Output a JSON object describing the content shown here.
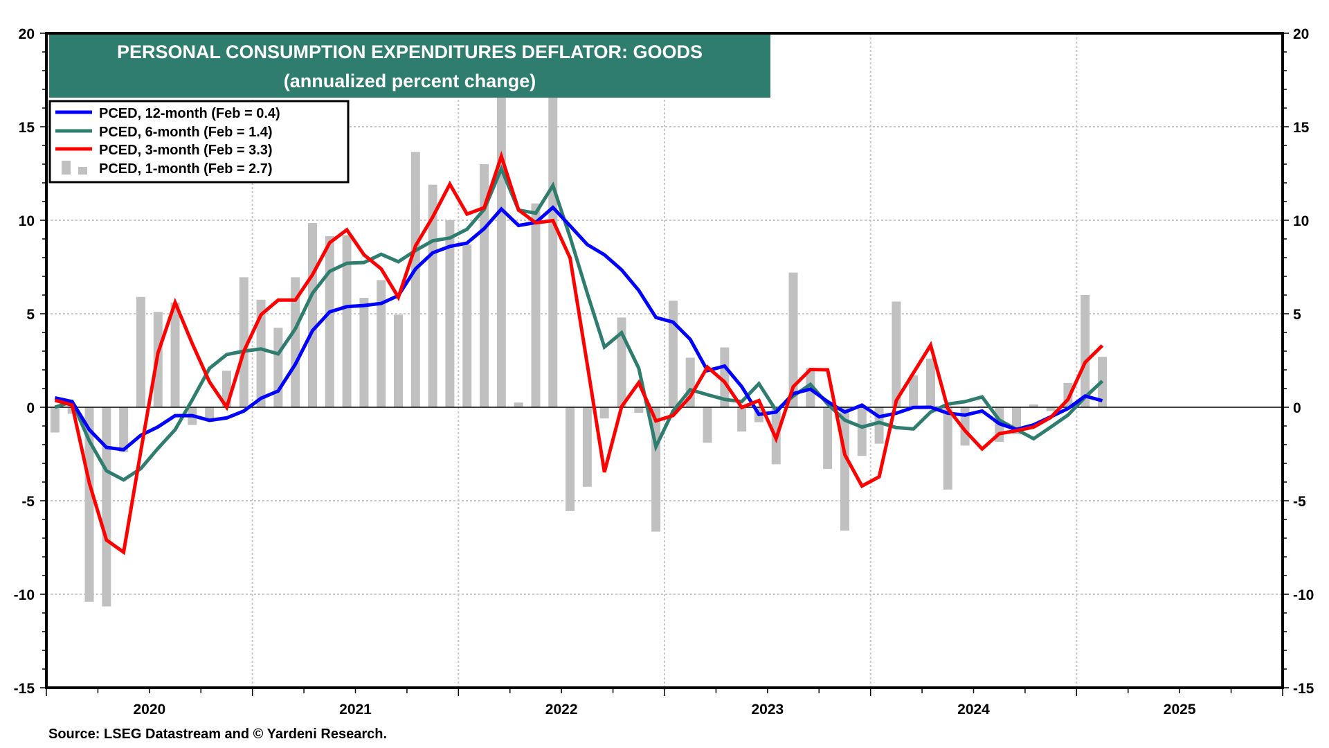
{
  "chart_data": {
    "type": "bar+line",
    "title": "PERSONAL CONSUMPTION EXPENDITURES DEFLATOR: GOODS",
    "subtitle": "(annualized percent change)",
    "xlabel": "",
    "ylabel": "",
    "ylim": [
      -15,
      20
    ],
    "yticks": [
      20,
      15,
      10,
      5,
      0,
      -5,
      -10,
      -15
    ],
    "y_minor_step": 1,
    "x_range": [
      "2020-01",
      "2025-12"
    ],
    "x_tick_labels": [
      "2020",
      "2021",
      "2022",
      "2023",
      "2024",
      "2025"
    ],
    "x_ticks": "quarterly",
    "grid": {
      "horizontal": "dotted",
      "vertical": "dashed at year boundaries"
    },
    "legend_position": "top-left",
    "source": "Source: LSEG Datastream and © Yardeni Research.",
    "months": [
      "2020-01",
      "2020-02",
      "2020-03",
      "2020-04",
      "2020-05",
      "2020-06",
      "2020-07",
      "2020-08",
      "2020-09",
      "2020-10",
      "2020-11",
      "2020-12",
      "2021-01",
      "2021-02",
      "2021-03",
      "2021-04",
      "2021-05",
      "2021-06",
      "2021-07",
      "2021-08",
      "2021-09",
      "2021-10",
      "2021-11",
      "2021-12",
      "2022-01",
      "2022-02",
      "2022-03",
      "2022-04",
      "2022-05",
      "2022-06",
      "2022-07",
      "2022-08",
      "2022-09",
      "2022-10",
      "2022-11",
      "2022-12",
      "2023-01",
      "2023-02",
      "2023-03",
      "2023-04",
      "2023-05",
      "2023-06",
      "2023-07",
      "2023-08",
      "2023-09",
      "2023-10",
      "2023-11",
      "2023-12",
      "2024-01",
      "2024-02",
      "2024-03",
      "2024-04",
      "2024-05",
      "2024-06",
      "2024-07",
      "2024-08",
      "2024-09",
      "2024-10",
      "2024-11",
      "2024-12",
      "2025-01",
      "2025-02"
    ],
    "series": [
      {
        "name": "PCED, 1-month",
        "legend": "PCED, 1-month (Feb = 2.7)",
        "type": "bar",
        "color": "#C0C0C0",
        "values": [
          -1.35,
          -0.35,
          -10.4,
          -10.65,
          -2.4,
          5.9,
          5.1,
          5.6,
          -0.95,
          -0.7,
          1.95,
          6.95,
          5.75,
          4.25,
          6.95,
          9.85,
          9.15,
          9.2,
          5.85,
          6.8,
          4.95,
          13.65,
          11.9,
          10.0,
          8.7,
          13.0,
          19.0,
          0.25,
          10.9,
          18.0,
          -5.55,
          -4.25,
          -0.6,
          4.8,
          -0.3,
          -6.65,
          5.7,
          2.65,
          -1.9,
          3.2,
          -1.3,
          -0.8,
          -3.05,
          7.2,
          2.1,
          -3.3,
          -6.6,
          -2.6,
          -1.95,
          5.65,
          1.7,
          2.6,
          -4.4,
          -2.05,
          0.05,
          -1.85,
          -1.45,
          0.15,
          -0.2,
          1.3,
          6.0,
          2.7
        ]
      },
      {
        "name": "PCED, 12-month",
        "legend": "PCED, 12-month (Feb = 0.4)",
        "type": "line",
        "color": "#0000FF",
        "values": [
          0.5,
          0.3,
          -1.2,
          -2.15,
          -2.27,
          -1.5,
          -1.05,
          -0.45,
          -0.45,
          -0.7,
          -0.57,
          -0.2,
          0.48,
          0.87,
          2.3,
          4.1,
          5.1,
          5.38,
          5.44,
          5.55,
          5.97,
          7.4,
          8.26,
          8.6,
          8.78,
          9.55,
          10.6,
          9.72,
          9.88,
          10.68,
          9.7,
          8.7,
          8.15,
          7.35,
          6.25,
          4.8,
          4.55,
          3.63,
          1.96,
          2.2,
          1.1,
          -0.38,
          -0.26,
          0.73,
          0.97,
          0.3,
          -0.26,
          0.11,
          -0.51,
          -0.32,
          -0.01,
          0.0,
          -0.32,
          -0.42,
          -0.2,
          -0.88,
          -1.19,
          -0.94,
          -0.51,
          -0.07,
          0.6,
          0.35
        ]
      },
      {
        "name": "PCED, 6-month",
        "legend": "PCED, 6-month (Feb = 1.4)",
        "type": "line",
        "color": "#2E7D6F",
        "values": [
          0.0,
          0.3,
          -1.8,
          -3.4,
          -3.88,
          -3.28,
          -2.2,
          -1.2,
          0.4,
          2.08,
          2.82,
          3.0,
          3.12,
          2.85,
          4.2,
          6.1,
          7.27,
          7.7,
          7.74,
          8.18,
          7.78,
          8.38,
          8.9,
          9.05,
          9.52,
          10.58,
          12.75,
          10.54,
          10.38,
          11.86,
          9.1,
          6.1,
          3.22,
          3.98,
          2.09,
          -2.11,
          -0.2,
          0.94,
          0.67,
          0.42,
          0.3,
          1.26,
          -0.17,
          0.6,
          1.22,
          0.17,
          -0.69,
          -1.06,
          -0.81,
          -1.09,
          -1.16,
          -0.26,
          0.17,
          0.3,
          0.55,
          -0.69,
          -1.19,
          -1.68,
          -1.06,
          -0.42,
          0.54,
          1.4
        ]
      },
      {
        "name": "PCED, 3-month",
        "legend": "PCED, 3-month (Feb = 3.3)",
        "type": "line",
        "color": "#FF0000",
        "values": [
          0.37,
          0.12,
          -4.05,
          -7.1,
          -7.75,
          -2.35,
          2.9,
          5.6,
          3.4,
          1.35,
          0.0,
          3.0,
          4.95,
          5.73,
          5.73,
          7.09,
          8.8,
          9.49,
          8.15,
          7.4,
          5.88,
          8.63,
          10.17,
          11.93,
          10.33,
          10.67,
          13.42,
          10.55,
          9.86,
          9.98,
          7.98,
          2.3,
          -3.47,
          0.03,
          1.31,
          -0.73,
          -0.44,
          0.57,
          2.15,
          1.35,
          -0.01,
          0.36,
          -1.68,
          1.1,
          2.02,
          2.0,
          -2.54,
          -4.21,
          -3.72,
          0.36,
          1.84,
          3.32,
          -0.07,
          -1.25,
          -2.23,
          -1.41,
          -1.25,
          -1.06,
          -0.54,
          0.42,
          2.4,
          3.3
        ]
      }
    ]
  },
  "colors": {
    "title_background": "#2E7D6F",
    "title_text": "#FFFFFF",
    "bar": "#C0C0C0",
    "blue_line": "#0000FF",
    "green_line": "#2E7D6F",
    "red_line": "#FF0000",
    "grid": "#C8C8C8",
    "axis": "#000000"
  }
}
